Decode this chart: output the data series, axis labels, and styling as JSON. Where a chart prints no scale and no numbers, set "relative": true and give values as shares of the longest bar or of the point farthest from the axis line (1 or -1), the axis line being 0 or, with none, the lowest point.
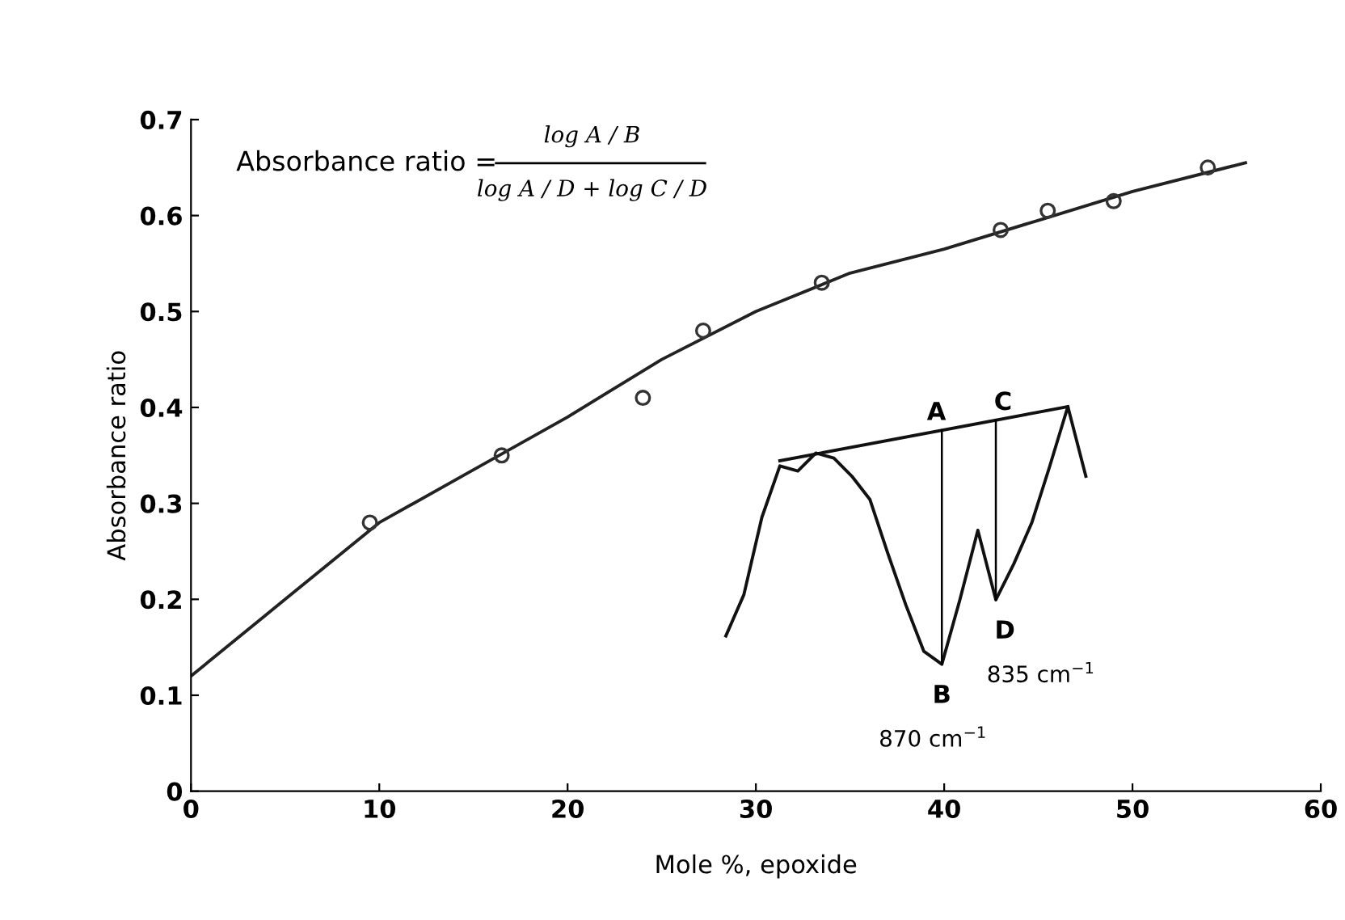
{
  "chart_data": [
    {
      "type": "scatter",
      "xlabel": "Mole %, epoxide",
      "ylabel": "Absorbance ratio",
      "xlim": [
        0,
        60
      ],
      "ylim": [
        0,
        0.7
      ],
      "xticks": [
        0,
        10,
        20,
        30,
        40,
        50,
        60
      ],
      "yticks": [
        0,
        0.1,
        0.2,
        0.3,
        0.4,
        0.5,
        0.6,
        0.7
      ],
      "grid": false,
      "legend": false,
      "series": [
        {
          "type": "scatter",
          "color": "#333333",
          "marker": "circle",
          "x": [
            9.5,
            16.5,
            24,
            27.2,
            33.5,
            43,
            45.5,
            49,
            54
          ],
          "values": [
            0.28,
            0.35,
            0.41,
            0.48,
            0.53,
            0.585,
            0.605,
            0.615,
            0.65
          ]
        },
        {
          "type": "line",
          "color": "#222222",
          "x": [
            0,
            5,
            10,
            15,
            20,
            25,
            30,
            35,
            40,
            45,
            50,
            56
          ],
          "values": [
            0.12,
            0.2,
            0.28,
            0.335,
            0.39,
            0.45,
            0.5,
            0.54,
            0.565,
            0.595,
            0.625,
            0.655
          ]
        }
      ],
      "annotations": [
        "Absorbance ratio =",
        "log A / B",
        "log A / D + log C / D"
      ]
    },
    {
      "type": "line",
      "relative": true,
      "categories": [
        null,
        null,
        null,
        null,
        null,
        null,
        null,
        null,
        null,
        null,
        null,
        null,
        null,
        null,
        null,
        null,
        null,
        null,
        null,
        null,
        null
      ],
      "series": [
        {
          "color": "#111111",
          "values": [
            0.11,
            0.27,
            0.57,
            0.77,
            0.75,
            0.82,
            0.8,
            0.73,
            0.64,
            0.43,
            0.23,
            0.05,
            0,
            0.25,
            0.52,
            0.25,
            0.39,
            0.55,
            0.77,
            1,
            0.73
          ]
        },
        {
          "color": "#111111",
          "values": [
            null,
            null,
            null,
            0.79,
            null,
            null,
            null,
            null,
            null,
            null,
            null,
            null,
            null,
            null,
            null,
            null,
            null,
            null,
            null,
            1,
            null
          ]
        }
      ],
      "annotations": [
        "A",
        "C",
        "B",
        "D",
        "835 cm$^{−1}$",
        "870 cm$^{−1}$"
      ]
    }
  ]
}
